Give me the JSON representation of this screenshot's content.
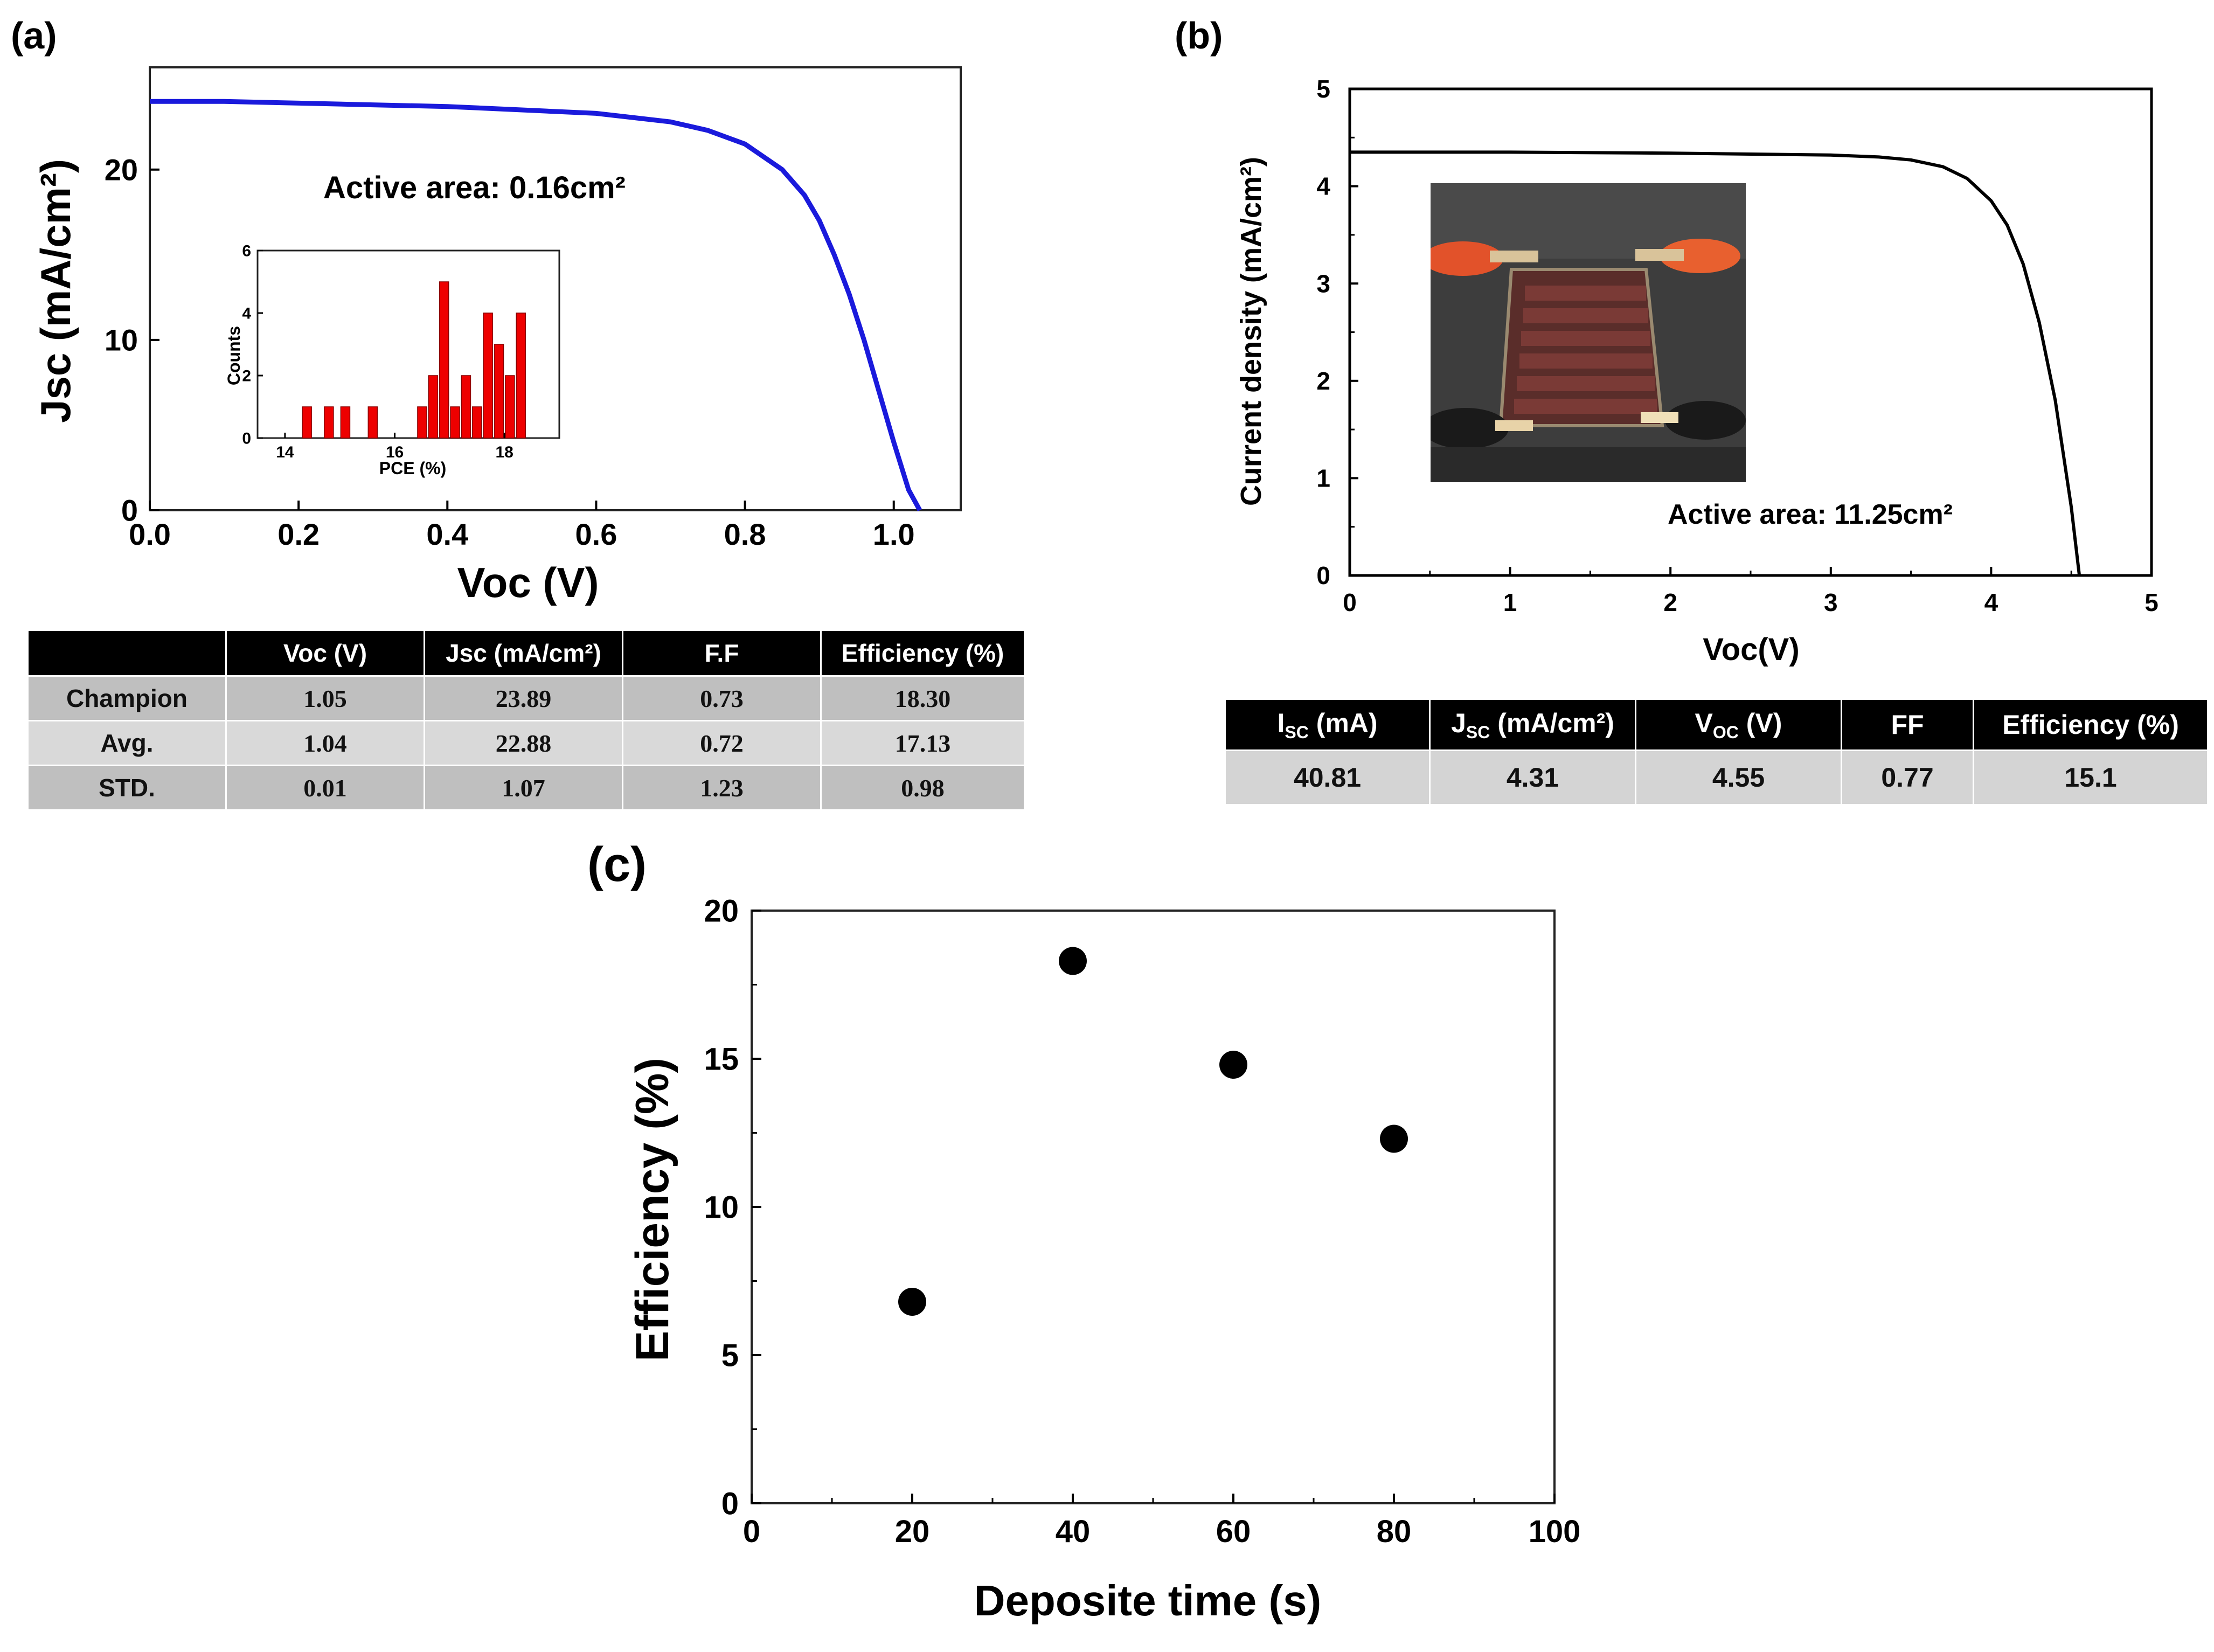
{
  "panel_labels": {
    "a": "(a)",
    "b": "(b)",
    "c": "(c)"
  },
  "colors": {
    "curve_a": "#1a1adc",
    "curve_b": "#000000",
    "hist_bar": "#ee0000",
    "points_c": "#000000"
  },
  "chart_data": [
    {
      "id": "a",
      "type": "line",
      "title": "",
      "xlabel": "Voc (V)",
      "ylabel": "Jsc (mA/cm²)",
      "xlim": [
        0,
        1.09
      ],
      "ylim": [
        0,
        26
      ],
      "xticks": [
        "0.0",
        "0.2",
        "0.4",
        "0.6",
        "0.8",
        "1.0"
      ],
      "yticks": [
        "0",
        "10",
        "20"
      ],
      "annotation": "Active area: 0.16cm²",
      "series": [
        {
          "name": "J-V",
          "x": [
            0,
            0.1,
            0.2,
            0.3,
            0.4,
            0.5,
            0.6,
            0.7,
            0.75,
            0.8,
            0.85,
            0.88,
            0.9,
            0.92,
            0.94,
            0.96,
            0.98,
            1.0,
            1.02,
            1.035
          ],
          "y": [
            24.0,
            24.0,
            23.9,
            23.8,
            23.7,
            23.5,
            23.3,
            22.8,
            22.3,
            21.5,
            20.0,
            18.5,
            17.0,
            15.0,
            12.7,
            10.0,
            7.0,
            4.0,
            1.2,
            0.0
          ]
        }
      ]
    },
    {
      "id": "a-inset",
      "type": "bar",
      "xlabel": "PCE (%)",
      "ylabel": "Counts",
      "xlim": [
        13.5,
        19.0
      ],
      "ylim": [
        0,
        6
      ],
      "xticks": [
        "14",
        "16",
        "18"
      ],
      "yticks": [
        "0",
        "2",
        "4",
        "6"
      ],
      "x": [
        14.4,
        14.8,
        15.1,
        15.6,
        16.5,
        16.7,
        16.9,
        17.1,
        17.3,
        17.5,
        17.7,
        17.9,
        18.1,
        18.3
      ],
      "values": [
        1,
        1,
        1,
        1,
        1,
        2,
        5,
        1,
        2,
        1,
        4,
        3,
        2,
        4
      ]
    },
    {
      "id": "b",
      "type": "line",
      "xlabel": "Voc(V)",
      "ylabel": "Current density (mA/cm²)",
      "xlim": [
        0,
        5
      ],
      "ylim": [
        0,
        5
      ],
      "xticks": [
        "0",
        "1",
        "2",
        "3",
        "4",
        "5"
      ],
      "yticks": [
        "0",
        "1",
        "2",
        "3",
        "4",
        "5"
      ],
      "annotation": "Active area: 11.25cm²",
      "series": [
        {
          "name": "J-V",
          "x": [
            0,
            1,
            2,
            3,
            3.3,
            3.5,
            3.7,
            3.85,
            4.0,
            4.1,
            4.2,
            4.3,
            4.4,
            4.5,
            4.55
          ],
          "y": [
            4.35,
            4.35,
            4.34,
            4.32,
            4.3,
            4.27,
            4.2,
            4.08,
            3.85,
            3.6,
            3.2,
            2.6,
            1.8,
            0.7,
            0.0
          ]
        }
      ]
    },
    {
      "id": "c",
      "type": "scatter",
      "xlabel": "Deposite time (s)",
      "ylabel": "Efficiency (%)",
      "xlim": [
        0,
        100
      ],
      "ylim": [
        0,
        20
      ],
      "xticks": [
        "0",
        "20",
        "40",
        "60",
        "80",
        "100"
      ],
      "yticks": [
        "0",
        "5",
        "10",
        "15",
        "20"
      ],
      "x": [
        20,
        40,
        60,
        80
      ],
      "y": [
        6.8,
        18.3,
        14.8,
        12.3
      ]
    }
  ],
  "table_a": {
    "headers": [
      "",
      "Voc (V)",
      "Jsc (mA/cm²)",
      "F.F",
      "Efficiency (%)"
    ],
    "rows": [
      [
        "Champion",
        "1.05",
        "23.89",
        "0.73",
        "18.30"
      ],
      [
        "Avg.",
        "1.04",
        "22.88",
        "0.72",
        "17.13"
      ],
      [
        "STD.",
        "0.01",
        "1.07",
        "1.23",
        "0.98"
      ]
    ]
  },
  "table_b": {
    "headers": [
      {
        "main": "I",
        "sub": "SC",
        "unit": " (mA)"
      },
      {
        "main": "J",
        "sub": "SC",
        "unit": " (mA/cm²)"
      },
      {
        "main": "V",
        "sub": "OC",
        "unit": " (V)"
      },
      {
        "main": "FF",
        "sub": "",
        "unit": ""
      },
      {
        "main": "Efficiency (%)",
        "sub": "",
        "unit": ""
      }
    ],
    "values": [
      "40.81",
      "4.31",
      "4.55",
      "0.77",
      "15.1"
    ]
  },
  "photo_icon": "solar-module-photo"
}
